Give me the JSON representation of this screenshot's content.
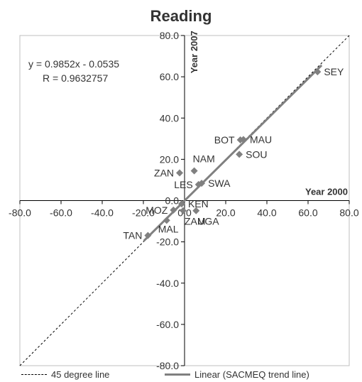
{
  "chart_data": {
    "type": "scatter",
    "title": "Reading",
    "xlabel": "Year 2000",
    "ylabel": "Year 2007",
    "xlim": [
      -80,
      80
    ],
    "ylim": [
      -80,
      80
    ],
    "x_ticks": [
      "-80.0",
      "-60.0",
      "-40.0",
      "-20.0",
      "0.0",
      "20.0",
      "40.0",
      "60.0",
      "80.0"
    ],
    "y_ticks": [
      "80.0",
      "60.0",
      "40.0",
      "20.0",
      "0.0",
      "-20.0",
      "-40.0",
      "-60.0",
      "-80.0"
    ],
    "x_tick_values": [
      -80,
      -60,
      -40,
      -20,
      0,
      20,
      40,
      60,
      80
    ],
    "y_tick_values": [
      80,
      60,
      40,
      20,
      0,
      -20,
      -40,
      -60,
      -80
    ],
    "equation": "y = 0.9852x - 0.0535",
    "r_value": "R = 0.9632757",
    "trend": {
      "slope": 0.9852,
      "intercept": -0.0535
    },
    "colors": {
      "point": "#808080",
      "trend": "#808080",
      "diagonal": "#000000",
      "axis": "#000000",
      "text": "#333333"
    },
    "legend_position": "bottom",
    "legend": [
      {
        "label": "45 degree line",
        "style": "dashed"
      },
      {
        "label": "Linear (SACMEQ trend line)",
        "style": "solid"
      }
    ],
    "points": [
      {
        "label": "SEY",
        "x": 64.6,
        "y": 62.4,
        "label_side": "right"
      },
      {
        "label": "BOT",
        "x": 27.1,
        "y": 29.4,
        "label_side": "left"
      },
      {
        "label": "MAU",
        "x": 28.6,
        "y": 29.6,
        "label_side": "right"
      },
      {
        "label": "SOU",
        "x": 26.6,
        "y": 22.4,
        "label_side": "right"
      },
      {
        "label": "NAM",
        "x": 4.7,
        "y": 14.4,
        "label_side": "above-right"
      },
      {
        "label": "ZAN",
        "x": -2.4,
        "y": 13.4,
        "label_side": "left"
      },
      {
        "label": "SWA",
        "x": 8.3,
        "y": 8.4,
        "label_side": "right"
      },
      {
        "label": "LES",
        "x": 6.8,
        "y": 7.8,
        "label_side": "left"
      },
      {
        "label": "KEN",
        "x": -1.4,
        "y": -1.6,
        "label_side": "right"
      },
      {
        "label": "MOZ",
        "x": -5.4,
        "y": -4.6,
        "label_side": "left"
      },
      {
        "label": "UGA",
        "x": 5.6,
        "y": -4.9,
        "label_side": "below-right"
      },
      {
        "label": "MAL",
        "x": -8.7,
        "y": -9.6,
        "label_side": "below"
      },
      {
        "label": "ZAM",
        "x": -0.7,
        "y": -4.9,
        "label_side": "below-right"
      },
      {
        "label": "TAN",
        "x": -17.8,
        "y": -16.9,
        "label_side": "left"
      }
    ]
  }
}
